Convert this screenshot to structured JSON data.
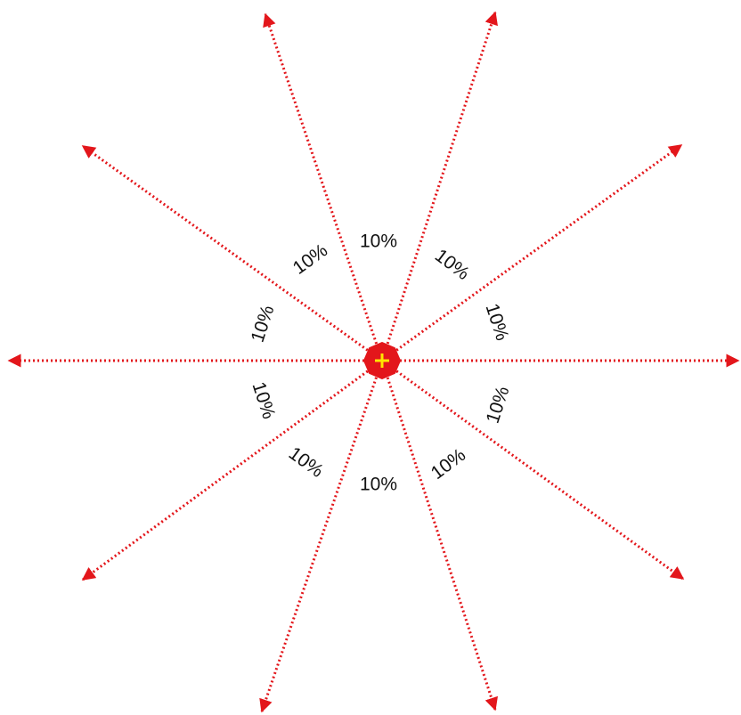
{
  "colors": {
    "ray": "#e3161b",
    "center": "#e3161b",
    "plus": "#ffe600",
    "label": "#111111"
  },
  "center": {
    "icon": "plus-icon"
  },
  "labels": [
    "10%",
    "10%",
    "10%",
    "10%",
    "10%",
    "10%",
    "10%",
    "10%",
    "10%",
    "10%"
  ]
}
